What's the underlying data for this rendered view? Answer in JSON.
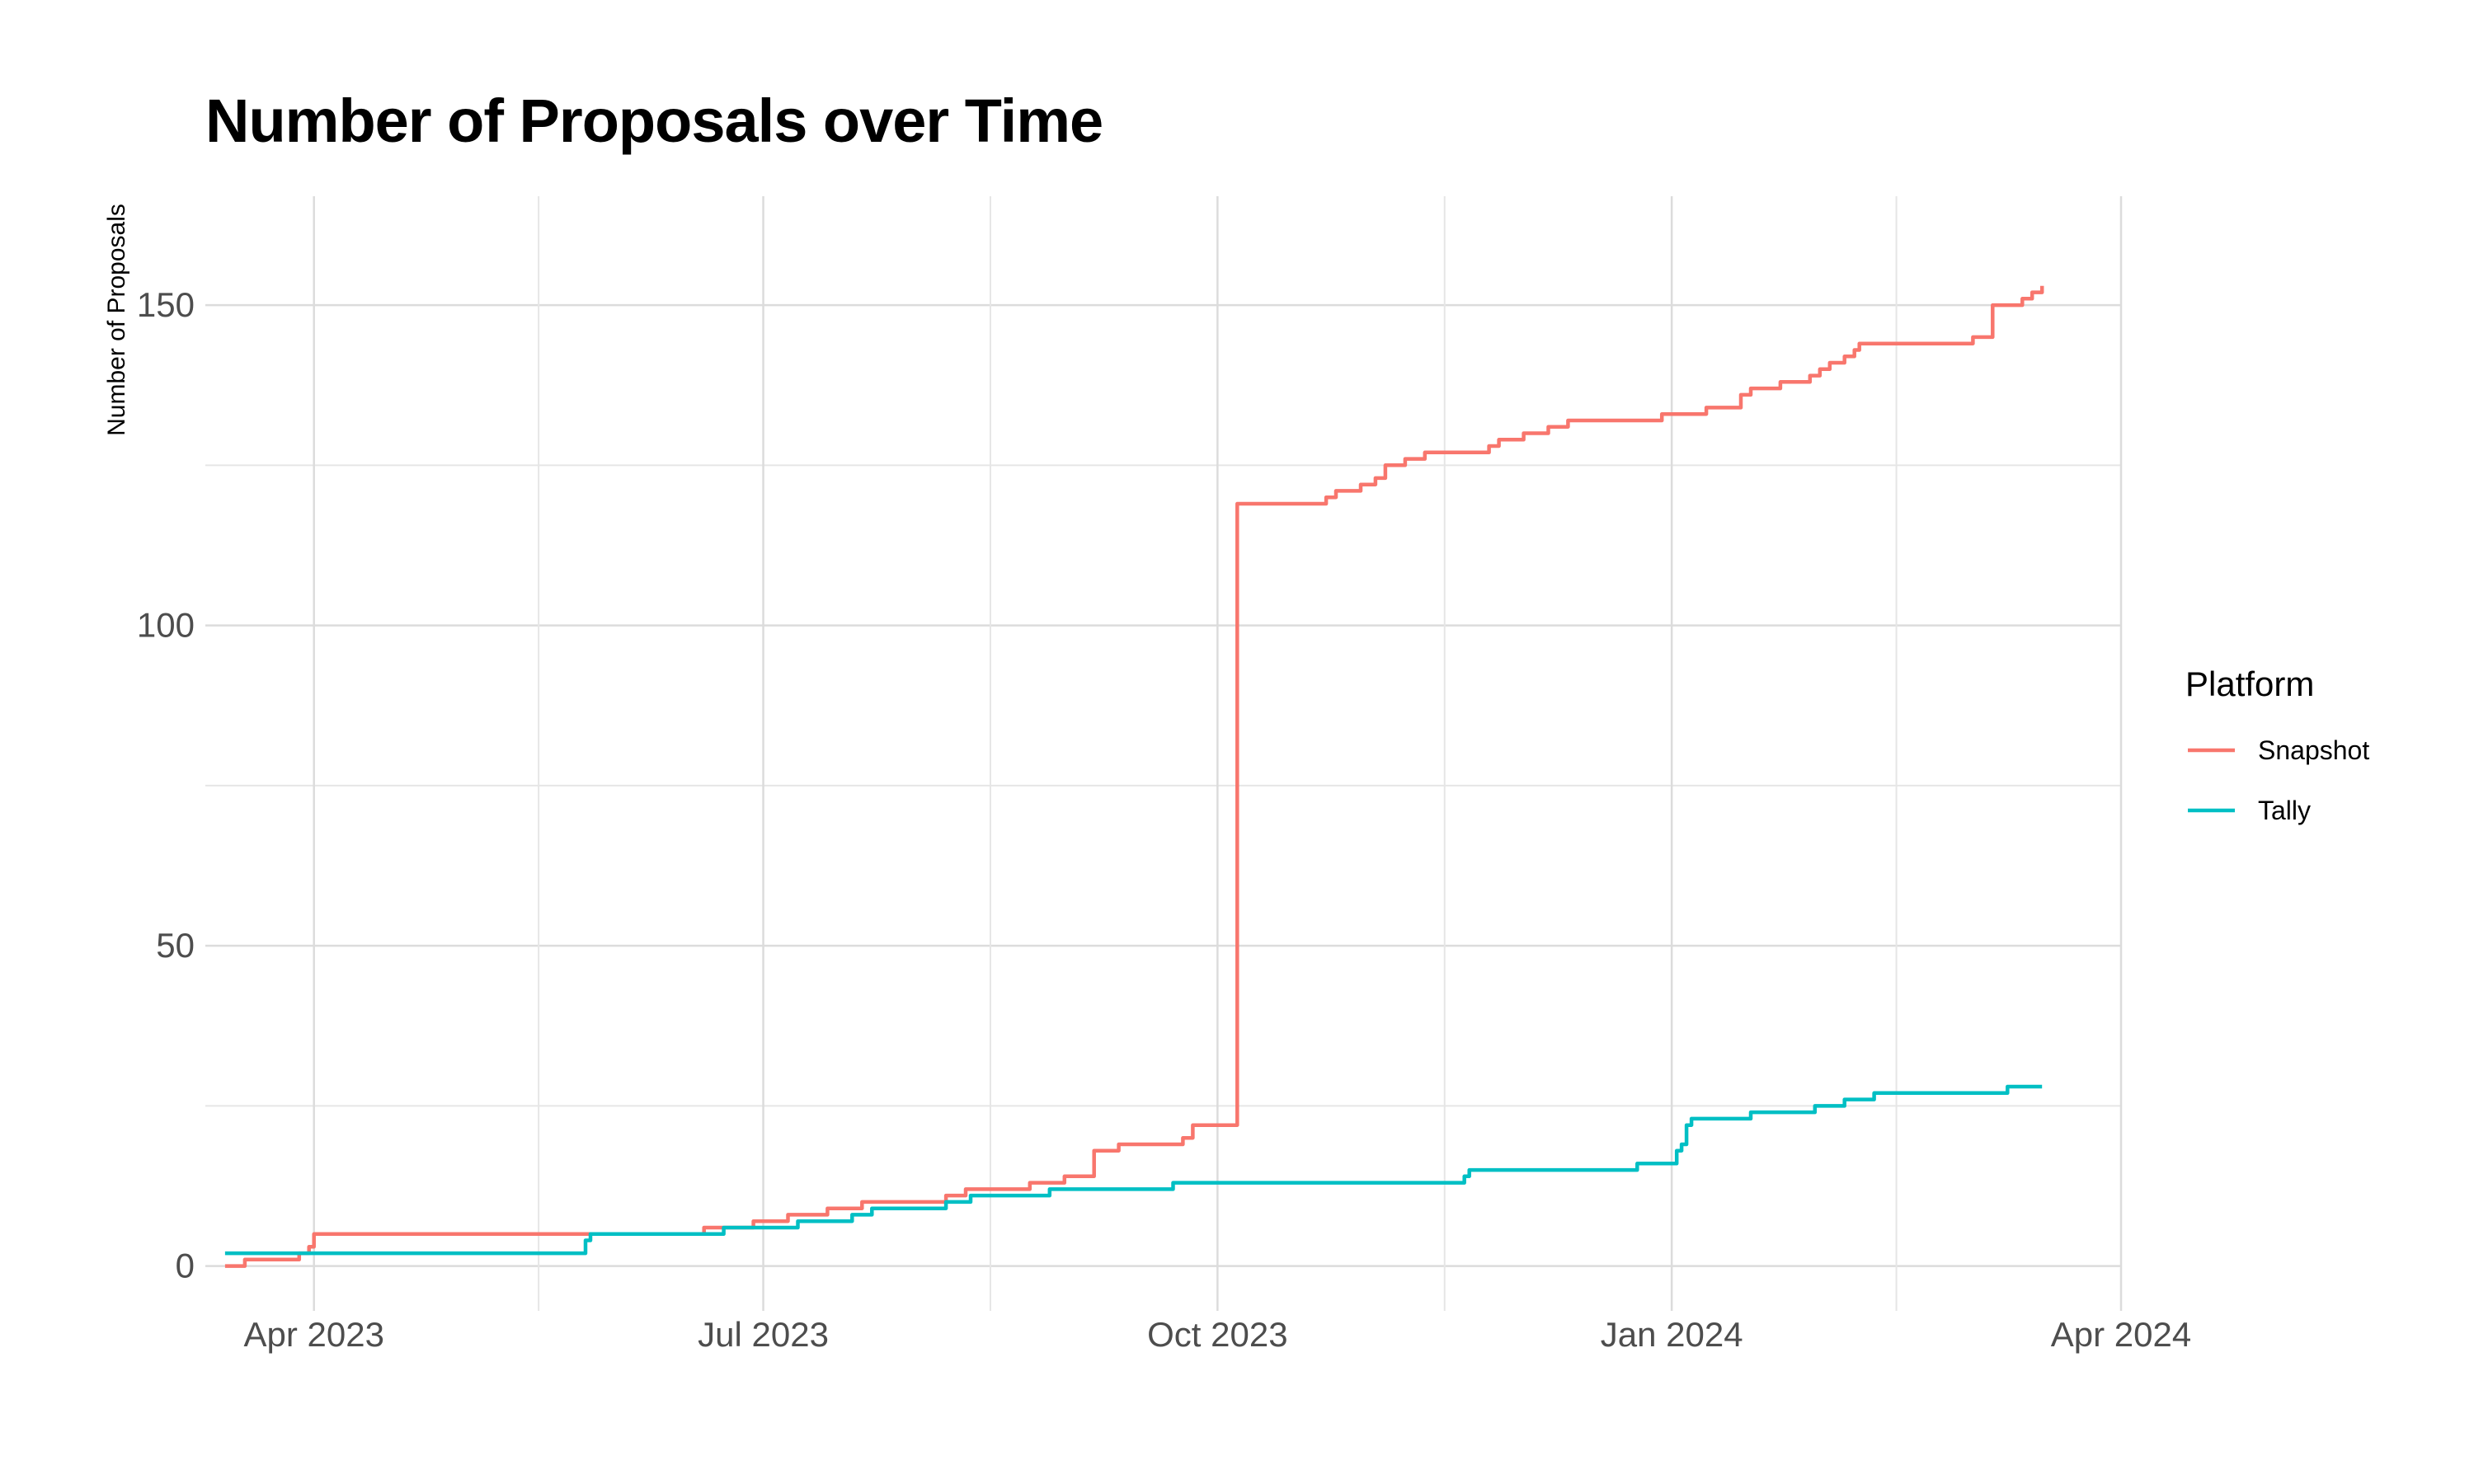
{
  "chart_data": {
    "type": "line",
    "step": true,
    "title": "Number of Proposals over Time",
    "xlabel": "",
    "ylabel": "Number of Proposals",
    "x_type": "date",
    "xlim": [
      "2023-03-10",
      "2024-04-01"
    ],
    "ylim": [
      -7,
      167
    ],
    "y_ticks": [
      0,
      50,
      100,
      150
    ],
    "x_ticks": [
      {
        "date": "2023-04-01",
        "label": "Apr 2023"
      },
      {
        "date": "2023-07-01",
        "label": "Jul 2023"
      },
      {
        "date": "2023-10-01",
        "label": "Oct 2023"
      },
      {
        "date": "2024-01-01",
        "label": "Jan 2024"
      },
      {
        "date": "2024-04-01",
        "label": "Apr 2024"
      }
    ],
    "grid": true,
    "legend": {
      "title": "Platform",
      "position": "right"
    },
    "series": [
      {
        "name": "Snapshot",
        "color": "#F8766D",
        "points": [
          [
            "2023-03-14",
            0
          ],
          [
            "2023-03-18",
            1
          ],
          [
            "2023-03-29",
            2
          ],
          [
            "2023-03-31",
            3
          ],
          [
            "2023-04-01",
            5
          ],
          [
            "2023-06-19",
            6
          ],
          [
            "2023-06-29",
            7
          ],
          [
            "2023-07-06",
            8
          ],
          [
            "2023-07-14",
            9
          ],
          [
            "2023-07-21",
            10
          ],
          [
            "2023-08-07",
            11
          ],
          [
            "2023-08-11",
            12
          ],
          [
            "2023-08-24",
            13
          ],
          [
            "2023-08-31",
            14
          ],
          [
            "2023-09-06",
            18
          ],
          [
            "2023-09-11",
            19
          ],
          [
            "2023-09-24",
            20
          ],
          [
            "2023-09-26",
            22
          ],
          [
            "2023-10-05",
            119
          ],
          [
            "2023-10-23",
            120
          ],
          [
            "2023-10-25",
            121
          ],
          [
            "2023-10-30",
            122
          ],
          [
            "2023-11-02",
            123
          ],
          [
            "2023-11-04",
            125
          ],
          [
            "2023-11-08",
            126
          ],
          [
            "2023-11-12",
            127
          ],
          [
            "2023-11-25",
            128
          ],
          [
            "2023-11-27",
            129
          ],
          [
            "2023-12-02",
            130
          ],
          [
            "2023-12-07",
            131
          ],
          [
            "2023-12-11",
            132
          ],
          [
            "2023-12-30",
            133
          ],
          [
            "2024-01-08",
            134
          ],
          [
            "2024-01-15",
            136
          ],
          [
            "2024-01-17",
            137
          ],
          [
            "2024-01-23",
            138
          ],
          [
            "2024-01-29",
            139
          ],
          [
            "2024-01-31",
            140
          ],
          [
            "2024-02-02",
            141
          ],
          [
            "2024-02-05",
            142
          ],
          [
            "2024-02-07",
            143
          ],
          [
            "2024-02-08",
            144
          ],
          [
            "2024-03-02",
            145
          ],
          [
            "2024-03-06",
            150
          ],
          [
            "2024-03-12",
            151
          ],
          [
            "2024-03-14",
            152
          ],
          [
            "2024-03-16",
            153
          ]
        ]
      },
      {
        "name": "Tally",
        "color": "#00BFC4",
        "points": [
          [
            "2023-03-14",
            2
          ],
          [
            "2023-05-26",
            4
          ],
          [
            "2023-05-27",
            5
          ],
          [
            "2023-06-23",
            6
          ],
          [
            "2023-07-08",
            7
          ],
          [
            "2023-07-19",
            8
          ],
          [
            "2023-07-23",
            9
          ],
          [
            "2023-08-07",
            10
          ],
          [
            "2023-08-12",
            11
          ],
          [
            "2023-08-28",
            12
          ],
          [
            "2023-09-22",
            13
          ],
          [
            "2023-11-20",
            14
          ],
          [
            "2023-11-21",
            15
          ],
          [
            "2023-12-25",
            16
          ],
          [
            "2024-01-02",
            18
          ],
          [
            "2024-01-03",
            19
          ],
          [
            "2024-01-04",
            22
          ],
          [
            "2024-01-05",
            23
          ],
          [
            "2024-01-17",
            24
          ],
          [
            "2024-01-30",
            25
          ],
          [
            "2024-02-05",
            26
          ],
          [
            "2024-02-11",
            27
          ],
          [
            "2024-03-09",
            28
          ],
          [
            "2024-03-16",
            28
          ]
        ]
      }
    ]
  }
}
